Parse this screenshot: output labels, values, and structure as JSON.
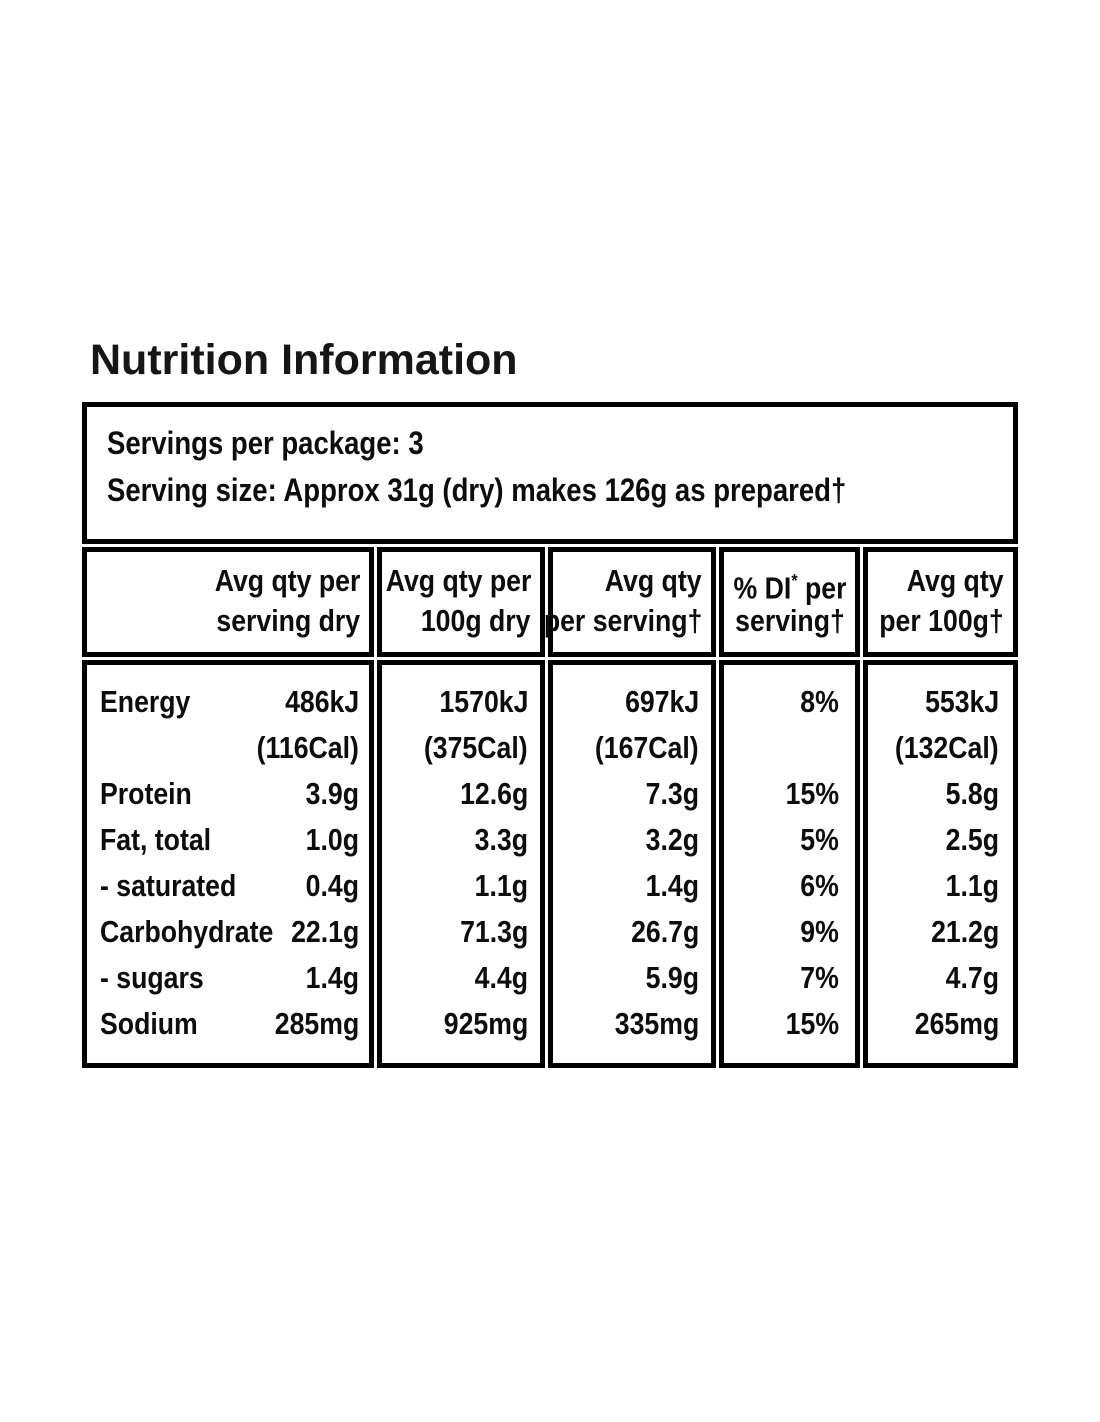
{
  "title": "Nutrition Information",
  "colors": {
    "border": "#000000",
    "text": "#0d0d0d",
    "background": "#ffffff"
  },
  "nutrition_table": {
    "servings_per_package": "Servings per package: 3",
    "serving_size": "Serving size: Approx 31g (dry) makes 126g as prepared†",
    "columns": [
      {
        "line1": "Avg qty per",
        "line2": "serving dry"
      },
      {
        "line1": "Avg qty per",
        "line2": "100g dry"
      },
      {
        "line1": "Avg qty",
        "line2": "per serving†"
      },
      {
        "line1_prefix": "% DI",
        "line1_sup": "*",
        "line1_suffix": " per",
        "line2": "serving†"
      },
      {
        "line1": "Avg qty",
        "line2": "per 100g†"
      }
    ],
    "rows": [
      {
        "label": "Energy",
        "values": [
          "486kJ",
          "1570kJ",
          "697kJ",
          "8%",
          "553kJ"
        ],
        "values2": [
          "(116Cal)",
          "(375Cal)",
          "(167Cal)",
          "",
          "(132Cal)"
        ]
      },
      {
        "label": "Protein",
        "values": [
          "3.9g",
          "12.6g",
          "7.3g",
          "15%",
          "5.8g"
        ]
      },
      {
        "label": "Fat, total",
        "values": [
          "1.0g",
          "3.3g",
          "3.2g",
          "5%",
          "2.5g"
        ]
      },
      {
        "label": "- saturated",
        "values": [
          "0.4g",
          "1.1g",
          "1.4g",
          "6%",
          "1.1g"
        ]
      },
      {
        "label": "Carbohydrate",
        "values": [
          "22.1g",
          "71.3g",
          "26.7g",
          "9%",
          "21.2g"
        ]
      },
      {
        "label": "- sugars",
        "values": [
          "1.4g",
          "4.4g",
          "5.9g",
          "7%",
          "4.7g"
        ]
      },
      {
        "label": "Sodium",
        "values": [
          "285mg",
          "925mg",
          "335mg",
          "15%",
          "265mg"
        ]
      }
    ]
  }
}
